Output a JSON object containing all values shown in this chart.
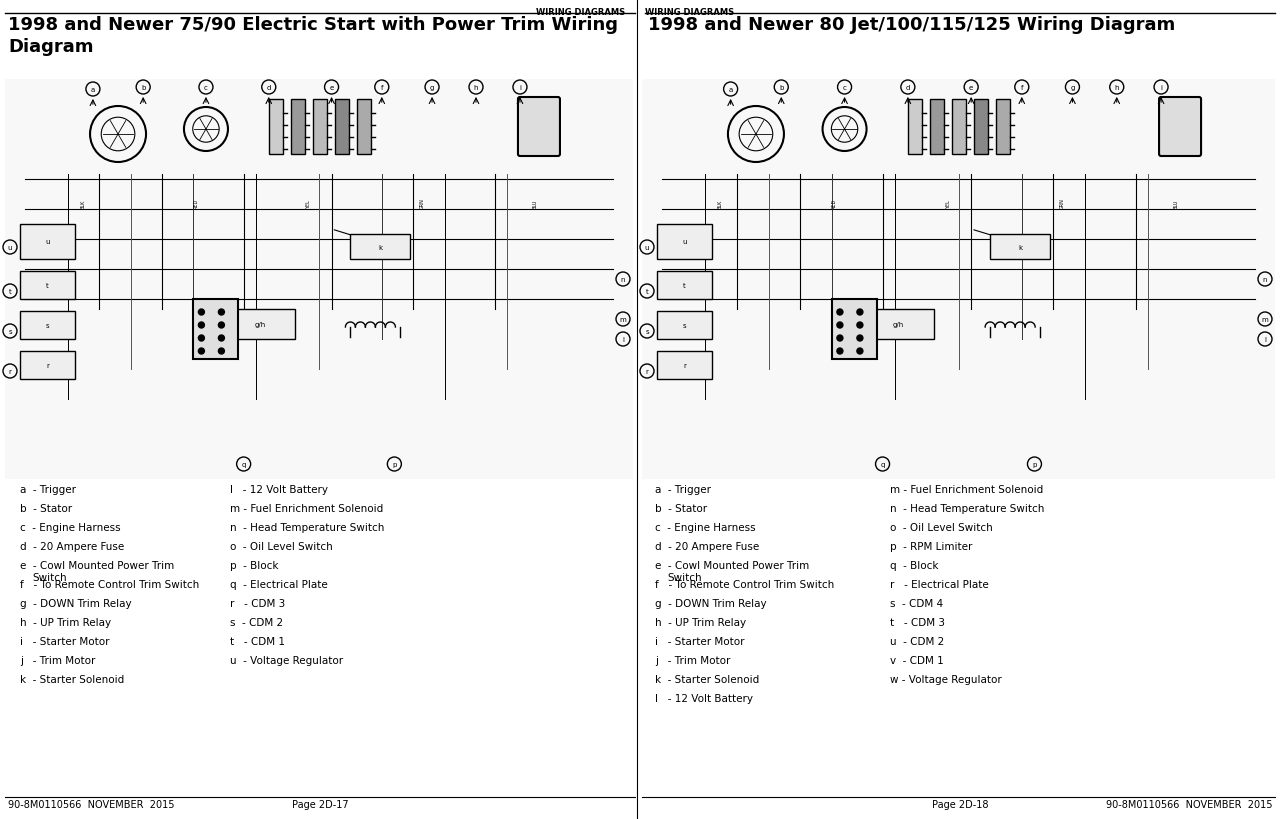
{
  "page_header_left": "WIRING DIAGRAMS",
  "page_header_right": "WIRING DIAGRAMS",
  "title_left": "1998 and Newer 75/90 Electric Start with Power Trim Wiring\nDiagram",
  "title_right": "1998 and Newer 80 Jet/100/115/125 Wiring Diagram",
  "footer_left": "90-8M0110566  NOVEMBER  2015",
  "footer_center_left": "Page 2D-17",
  "footer_center_right": "Page 2D-18",
  "footer_right": "90-8M0110566  NOVEMBER  2015",
  "legend_left_col1": [
    "a  - Trigger",
    "b  - Stator",
    "c  - Engine Harness",
    "d  - 20 Ampere Fuse",
    "e  - Cowl Mounted Power Trim\n       Switch",
    "f   - To Remote Control Trim Switch",
    "g  - DOWN Trim Relay",
    "h  - UP Trim Relay",
    "i   - Starter Motor",
    "j   - Trim Motor",
    "k  - Starter Solenoid"
  ],
  "legend_left_col2": [
    "l   - 12 Volt Battery",
    "m - Fuel Enrichment Solenoid",
    "n  - Head Temperature Switch",
    "o  - Oil Level Switch",
    "p  - Block",
    "q  - Electrical Plate",
    "r   - CDM 3",
    "s  - CDM 2",
    "t   - CDM 1",
    "u  - Voltage Regulator"
  ],
  "legend_right_col1": [
    "a  - Trigger",
    "b  - Stator",
    "c  - Engine Harness",
    "d  - 20 Ampere Fuse",
    "e  - Cowl Mounted Power Trim\n       Switch",
    "f   - To Remote Control Trim Switch",
    "g  - DOWN Trim Relay",
    "h  - UP Trim Relay",
    "i   - Starter Motor",
    "j   - Trim Motor",
    "k  - Starter Solenoid",
    "l   - 12 Volt Battery"
  ],
  "legend_right_col2": [
    "m - Fuel Enrichment Solenoid",
    "n  - Head Temperature Switch",
    "o  - Oil Level Switch",
    "p  - RPM Limiter",
    "q  - Block",
    "r   - Electrical Plate",
    "s  - CDM 4",
    "t   - CDM 3",
    "u  - CDM 2",
    "v  - CDM 1",
    "w - Voltage Regulator"
  ],
  "bg_color": "#ffffff",
  "text_color": "#000000",
  "diagram_bg": "#f5f5f5",
  "divider_color": "#000000"
}
